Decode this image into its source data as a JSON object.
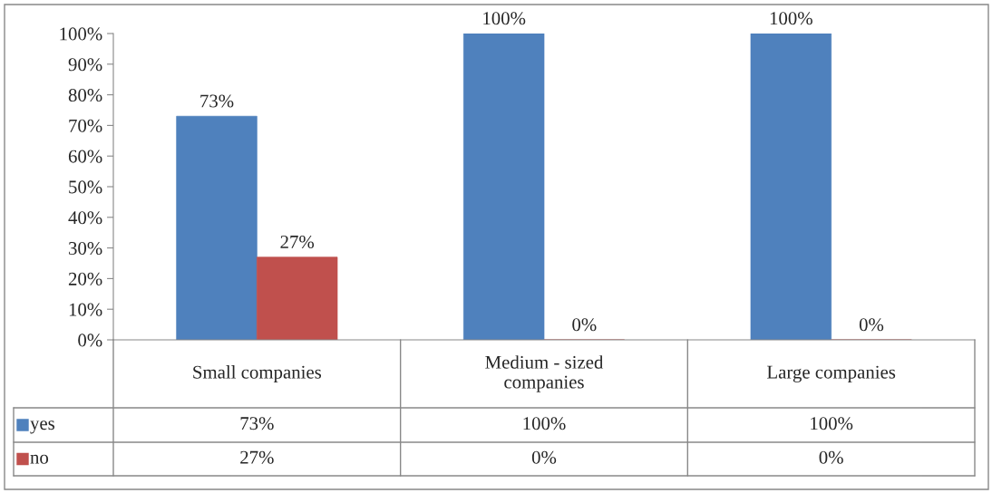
{
  "chart_data": {
    "type": "bar",
    "categories": [
      "Small companies",
      "Medium - sized\ncompanies",
      "Large companies"
    ],
    "series": [
      {
        "name": "yes",
        "color": "#4f81bd",
        "values": [
          73,
          100,
          100
        ],
        "value_labels": [
          "73%",
          "100%",
          "100%"
        ]
      },
      {
        "name": "no",
        "color": "#c0504d",
        "values": [
          27,
          0,
          0
        ],
        "value_labels": [
          "27%",
          "0%",
          "0%"
        ]
      }
    ],
    "ylim": [
      0,
      100
    ],
    "yticks": [
      {
        "value": 0,
        "label": "0%"
      },
      {
        "value": 10,
        "label": "10%"
      },
      {
        "value": 20,
        "label": "20%"
      },
      {
        "value": 30,
        "label": "30%"
      },
      {
        "value": 40,
        "label": "40%"
      },
      {
        "value": 50,
        "label": "50%"
      },
      {
        "value": 60,
        "label": "60%"
      },
      {
        "value": 70,
        "label": "70%"
      },
      {
        "value": 80,
        "label": "80%"
      },
      {
        "value": 90,
        "label": "90%"
      },
      {
        "value": 100,
        "label": "100%"
      }
    ],
    "grid": false,
    "legend": "bottom"
  }
}
